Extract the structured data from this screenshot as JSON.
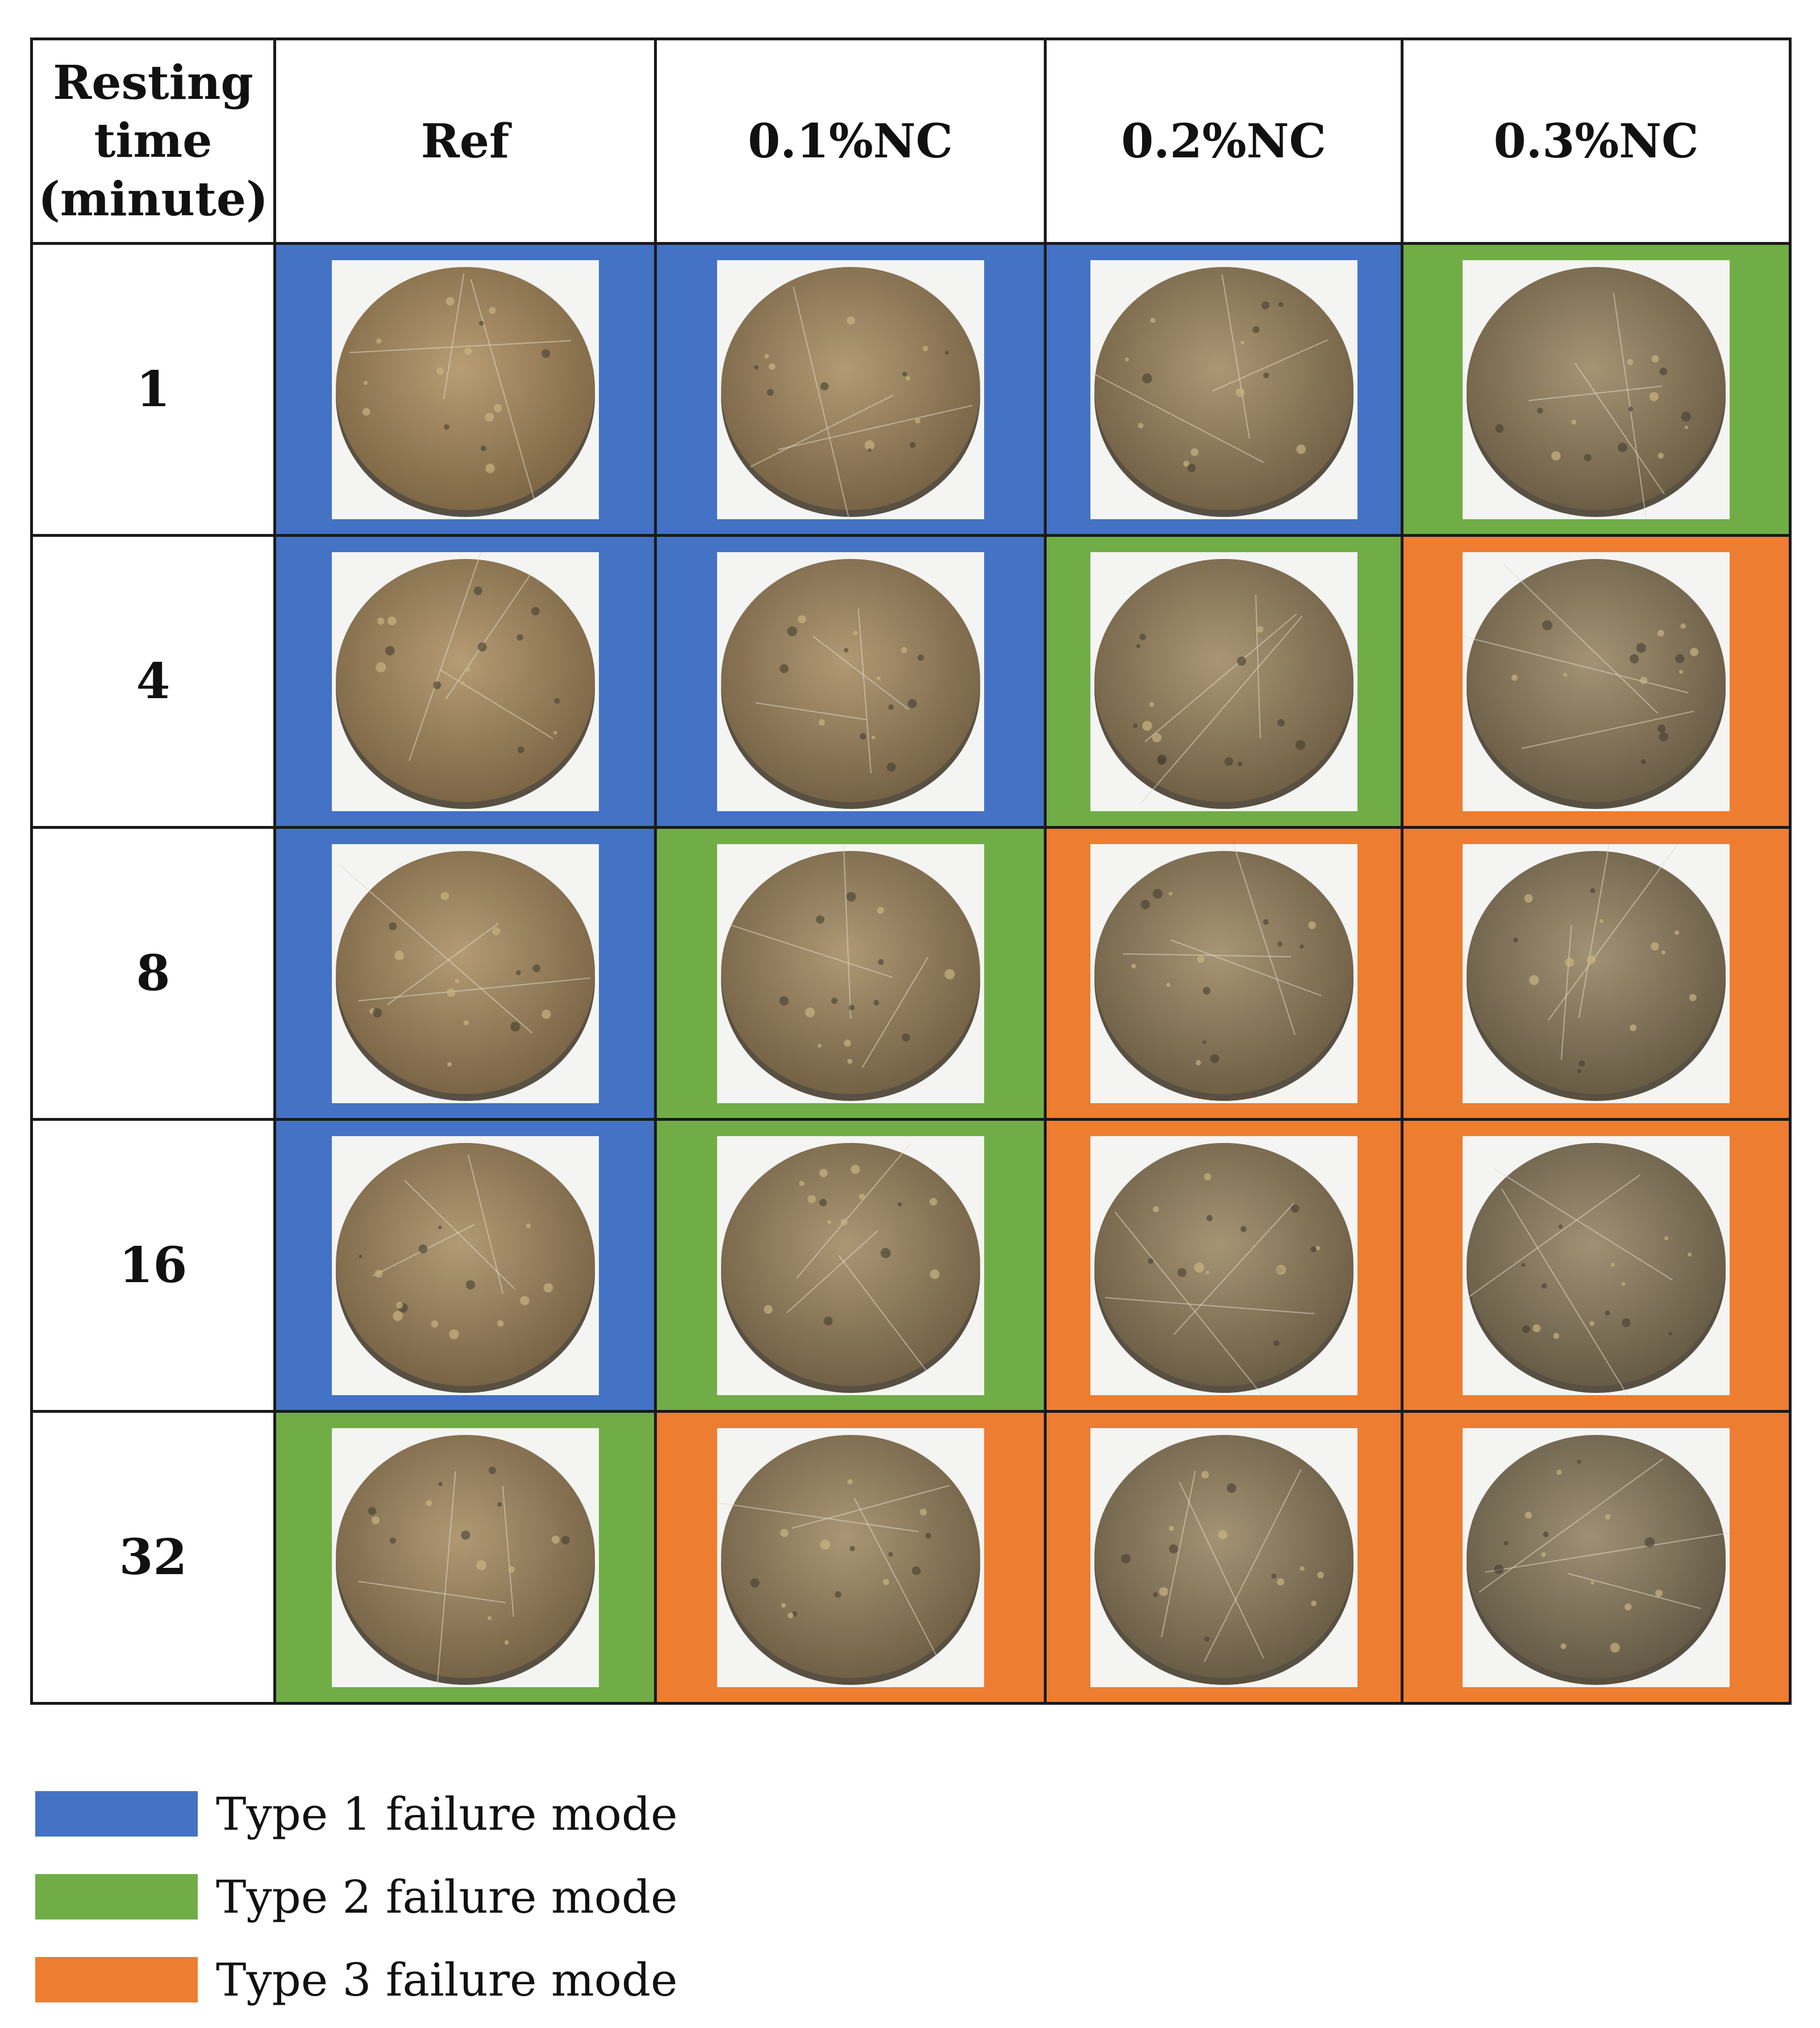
{
  "table": {
    "header": {
      "first_line1": "Resting",
      "first_line2": "time",
      "first_line3": "(minute)",
      "columns": [
        "Ref",
        "0.1%NC",
        "0.2%NC",
        "0.3%NC"
      ]
    },
    "rows": [
      {
        "time": "1",
        "failure_types": [
          1,
          1,
          1,
          2
        ]
      },
      {
        "time": "4",
        "failure_types": [
          1,
          1,
          2,
          3
        ]
      },
      {
        "time": "8",
        "failure_types": [
          1,
          2,
          3,
          3
        ]
      },
      {
        "time": "16",
        "failure_types": [
          1,
          2,
          3,
          3
        ]
      },
      {
        "time": "32",
        "failure_types": [
          2,
          3,
          3,
          3
        ]
      }
    ]
  },
  "legend": [
    {
      "type": 1,
      "label": "Type 1 failure mode",
      "color": "#4472C4"
    },
    {
      "type": 2,
      "label": "Type 2 failure mode",
      "color": "#70AD47"
    },
    {
      "type": 3,
      "label": "Type 3 failure mode",
      "color": "#ED7D31"
    }
  ],
  "sample_image": "cylindrical-specimen-top-surface-photo"
}
